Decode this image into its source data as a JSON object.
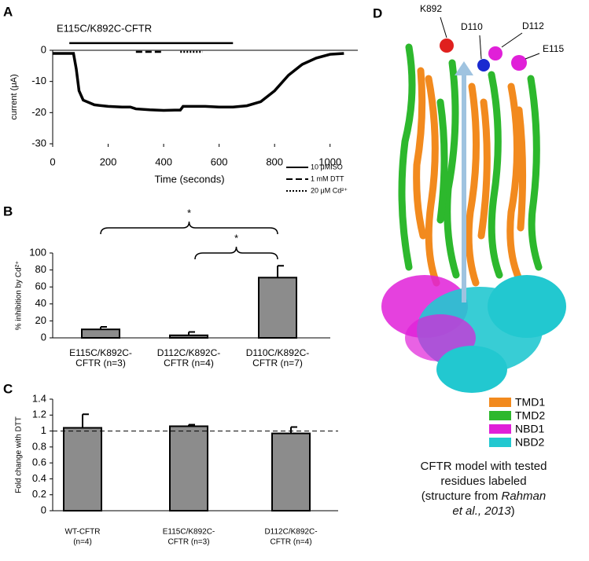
{
  "chart_data": [
    {
      "type": "line",
      "panel": "A",
      "annotation": "E115C/K892C-CFTR",
      "xlabel": "Time (seconds)",
      "ylabel": "current (μA)",
      "xlim": [
        0,
        1100
      ],
      "ylim": [
        -30,
        0
      ],
      "xticks": [
        0,
        200,
        400,
        600,
        800,
        1000
      ],
      "yticks": [
        0,
        -10,
        -20,
        -30
      ],
      "legend": "lower right",
      "series": [
        {
          "color": "#000000",
          "dash": "solid",
          "x": [
            0,
            60,
            75,
            85,
            95,
            110,
            150,
            200,
            250,
            280,
            300,
            350,
            400,
            440,
            460,
            470,
            500,
            550,
            600,
            650,
            700,
            750,
            800,
            850,
            900,
            950,
            1000,
            1050
          ],
          "values": [
            -1,
            -1,
            -1,
            -6,
            -13,
            -16,
            -17.5,
            -18,
            -18.2,
            -18.2,
            -18.8,
            -19.1,
            -19.3,
            -19.2,
            -19.2,
            -18,
            -18,
            -18,
            -18.2,
            -18.2,
            -17.8,
            -16.5,
            -13,
            -8,
            -4.5,
            -2.5,
            -1.3,
            -1
          ]
        },
        {
          "name": "10 μMISO",
          "color": "#000000",
          "dash": "solid",
          "x": [
            60,
            650
          ],
          "values": [
            2.3,
            2.3
          ]
        },
        {
          "name": "1 mM DTT",
          "color": "#000000",
          "dash": "dashed",
          "x": [
            300,
            400
          ],
          "values": [
            -0.5,
            -0.5
          ]
        },
        {
          "name": "20 μM Cd²⁺",
          "color": "#000000",
          "dash": "dotted",
          "x": [
            460,
            540
          ],
          "values": [
            -0.5,
            -0.5
          ]
        }
      ]
    },
    {
      "type": "bar",
      "panel": "B",
      "ylabel": "% inhibition by Cd²⁺",
      "color": "#8c8c8c",
      "categories": [
        [
          "E115C/K892C-",
          "CFTR (n=3)"
        ],
        [
          "D112C/K892C-",
          "CFTR (n=4)"
        ],
        [
          "D110C/K892C-",
          "CFTR (n=7)"
        ]
      ],
      "values": [
        10,
        3,
        71
      ],
      "errors": [
        3,
        4,
        14
      ],
      "ylim": [
        0,
        100
      ],
      "yticks": [
        0,
        20,
        40,
        60,
        80,
        100
      ],
      "annotations": [
        "*",
        "*"
      ]
    },
    {
      "type": "bar",
      "panel": "C",
      "ylabel": "Fold change with DTT",
      "color": "#8c8c8c",
      "categories": [
        [
          "WT-CFTR",
          "(n=4)"
        ],
        [
          "E115C/K892C-",
          "CFTR (n=3)"
        ],
        [
          "D112C/K892C-",
          "CFTR (n=4)"
        ]
      ],
      "values": [
        1.04,
        1.06,
        0.97
      ],
      "errors": [
        0.17,
        0.02,
        0.08
      ],
      "ylim": [
        0,
        1.4
      ],
      "yticks": [
        0,
        0.2,
        0.4,
        0.6,
        0.8,
        1,
        1.2,
        1.4
      ],
      "refline": 1
    }
  ],
  "structure": {
    "panel": "D",
    "residues": [
      "K892",
      "D110",
      "D112",
      "E115"
    ],
    "legend": [
      {
        "label": "TMD1",
        "color": "#f28a1e"
      },
      {
        "label": "TMD2",
        "color": "#2db82d"
      },
      {
        "label": "NBD1",
        "color": "#e020d8"
      },
      {
        "label": "NBD2",
        "color": "#22c8d0"
      }
    ],
    "caption": [
      "CFTR model with tested residues labeled (structure from ",
      "Rahman et al., 2013",
      ")"
    ]
  }
}
